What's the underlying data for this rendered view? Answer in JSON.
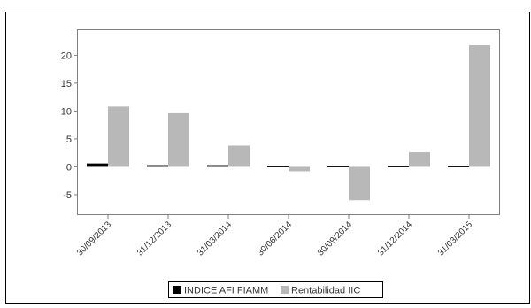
{
  "chart_data": {
    "type": "bar",
    "categories": [
      "30/09/2013",
      "31/12/2013",
      "31/03/2014",
      "30/06/2014",
      "30/09/2014",
      "31/12/2014",
      "31/03/2015"
    ],
    "series": [
      {
        "name": "INDICE AFI FIAMM",
        "color": "#000000",
        "values": [
          0.6,
          0.3,
          0.3,
          0.2,
          0.1,
          0.05,
          0.1
        ]
      },
      {
        "name": "Rentabilidad IIC",
        "color": "#b8b8b8",
        "values": [
          10.8,
          9.6,
          3.8,
          -0.8,
          -6.0,
          2.6,
          21.8
        ]
      }
    ],
    "y_ticks": [
      "-5",
      "0",
      "5",
      "10",
      "15",
      "20"
    ],
    "ylim": [
      -8.5,
      24.5
    ],
    "grid": false,
    "legend_position": "bottom"
  }
}
